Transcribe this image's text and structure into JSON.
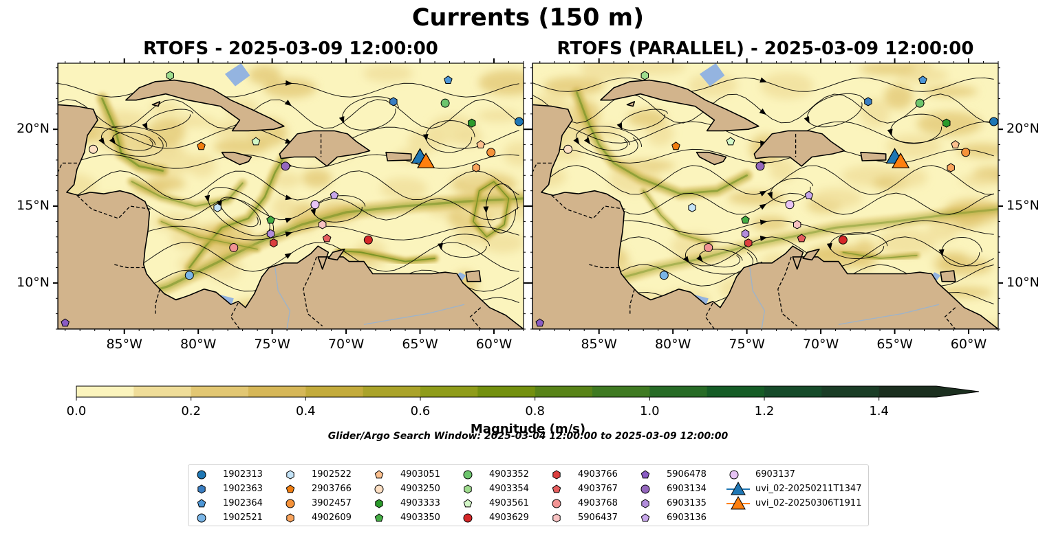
{
  "figure": {
    "title": "Currents (150 m)",
    "left_panel_title": "RTOFS - 2025-03-09 12:00:00",
    "right_panel_title": "RTOFS (PARALLEL) - 2025-03-09 12:00:00",
    "search_window": "Glider/Argo Search Window: 2025-03-04 12:00:00 to 2025-03-09 12:00:00"
  },
  "map": {
    "lon_range": [
      -89.5,
      -58.0
    ],
    "lat_range": [
      7.0,
      24.3
    ],
    "lon_ticks": [
      "85°W",
      "80°W",
      "75°W",
      "70°W",
      "65°W",
      "60°W"
    ],
    "lat_ticks": [
      "20°N",
      "15°N",
      "10°N"
    ],
    "colors": {
      "land": "#d2b48c",
      "shallow_water": "#94b4e0",
      "coast": "#000000"
    }
  },
  "colorbar": {
    "label": "Magnitude (m/s)",
    "ticks": [
      "0.0",
      "0.2",
      "0.4",
      "0.6",
      "0.8",
      "1.0",
      "1.2",
      "1.4"
    ],
    "min": 0.0,
    "max": 1.5,
    "extend": "max",
    "colors": [
      "#fbf4bd",
      "#efdd99",
      "#e2c773",
      "#d6b758",
      "#c3ab3c",
      "#aaa32a",
      "#8f9c1a",
      "#73900f",
      "#588318",
      "#3f7a22",
      "#276b26",
      "#155c26",
      "#164b2a",
      "#1a3d26",
      "#1b2f1f"
    ]
  },
  "legend": {
    "items": [
      {
        "label": "1902313",
        "marker": "circle",
        "color": "#1f77b4"
      },
      {
        "label": "1902363",
        "marker": "hexagon",
        "color": "#3a7ec2"
      },
      {
        "label": "1902364",
        "marker": "pentagon",
        "color": "#4d96d6"
      },
      {
        "label": "1902521",
        "marker": "circle",
        "color": "#7ab5e6"
      },
      {
        "label": "1902522",
        "marker": "hexagon",
        "color": "#c4e3f7"
      },
      {
        "label": "2903766",
        "marker": "pentagon",
        "color": "#f07d10"
      },
      {
        "label": "3902457",
        "marker": "circle",
        "color": "#f5923a"
      },
      {
        "label": "4902609",
        "marker": "hexagon",
        "color": "#f9a35c"
      },
      {
        "label": "4903051",
        "marker": "pentagon",
        "color": "#fcc08e"
      },
      {
        "label": "4903250",
        "marker": "circle",
        "color": "#fde0c4"
      },
      {
        "label": "4903333",
        "marker": "hexagon",
        "color": "#2b9a2b"
      },
      {
        "label": "4903350",
        "marker": "pentagon",
        "color": "#44ad44"
      },
      {
        "label": "4903352",
        "marker": "circle",
        "color": "#6dc56d"
      },
      {
        "label": "4903354",
        "marker": "hexagon",
        "color": "#9fdc8e"
      },
      {
        "label": "4903561",
        "marker": "pentagon",
        "color": "#d3f7c7"
      },
      {
        "label": "4903629",
        "marker": "circle",
        "color": "#d62728"
      },
      {
        "label": "4903766",
        "marker": "hexagon",
        "color": "#dc3f3f"
      },
      {
        "label": "4903767",
        "marker": "pentagon",
        "color": "#e55e5e"
      },
      {
        "label": "4903768",
        "marker": "circle",
        "color": "#f19393"
      },
      {
        "label": "5906437",
        "marker": "hexagon",
        "color": "#f8c2c2"
      },
      {
        "label": "5906478",
        "marker": "pentagon",
        "color": "#8a5cc4"
      },
      {
        "label": "6903134",
        "marker": "circle",
        "color": "#9467bd"
      },
      {
        "label": "6903135",
        "marker": "hexagon",
        "color": "#b28ddb"
      },
      {
        "label": "6903136",
        "marker": "pentagon",
        "color": "#c7a7ea"
      },
      {
        "label": "6903137",
        "marker": "circle",
        "color": "#e8c4f5"
      },
      {
        "label": "uvi_02-20250211T1347",
        "marker": "triangle-line",
        "color": "#1f77b4"
      },
      {
        "label": "uvi_02-20250306T1911",
        "marker": "triangle-line",
        "color": "#ff7f0e"
      }
    ]
  },
  "floats": [
    {
      "id": "1902313",
      "lon": -58.3,
      "lat": 20.5
    },
    {
      "id": "1902363",
      "lon": -66.8,
      "lat": 21.8
    },
    {
      "id": "1902364",
      "lon": -63.1,
      "lat": 23.2
    },
    {
      "id": "1902521",
      "lon": -80.6,
      "lat": 10.5
    },
    {
      "id": "1902522",
      "lon": -78.7,
      "lat": 14.9
    },
    {
      "id": "2903766",
      "lon": -79.8,
      "lat": 18.9
    },
    {
      "id": "3902457",
      "lon": -60.2,
      "lat": 18.5
    },
    {
      "id": "4902609",
      "lon": -61.2,
      "lat": 17.5
    },
    {
      "id": "4903051",
      "lon": -60.9,
      "lat": 19.0
    },
    {
      "id": "4903250",
      "lon": -87.1,
      "lat": 18.7
    },
    {
      "id": "4903333",
      "lon": -61.5,
      "lat": 20.4
    },
    {
      "id": "4903350",
      "lon": -75.1,
      "lat": 14.1
    },
    {
      "id": "4903352",
      "lon": -63.3,
      "lat": 21.7
    },
    {
      "id": "4903354",
      "lon": -81.9,
      "lat": 23.5
    },
    {
      "id": "4903561",
      "lon": -76.1,
      "lat": 19.2
    },
    {
      "id": "4903629",
      "lon": -68.5,
      "lat": 12.8
    },
    {
      "id": "4903766",
      "lon": -74.9,
      "lat": 12.6
    },
    {
      "id": "4903767",
      "lon": -71.3,
      "lat": 12.9
    },
    {
      "id": "4903768",
      "lon": -77.6,
      "lat": 12.3
    },
    {
      "id": "5906437",
      "lon": -71.6,
      "lat": 13.8
    },
    {
      "id": "5906478",
      "lon": -89.0,
      "lat": 7.4
    },
    {
      "id": "6903134",
      "lon": -74.1,
      "lat": 17.6
    },
    {
      "id": "6903135",
      "lon": -75.1,
      "lat": 13.2
    },
    {
      "id": "6903136",
      "lon": -70.8,
      "lat": 15.7
    },
    {
      "id": "6903137",
      "lon": -72.1,
      "lat": 15.1
    },
    {
      "id": "uvi_02-20250211T1347",
      "lon": -65.0,
      "lat": 18.2
    },
    {
      "id": "uvi_02-20250306T1911",
      "lon": -64.6,
      "lat": 17.9
    }
  ]
}
